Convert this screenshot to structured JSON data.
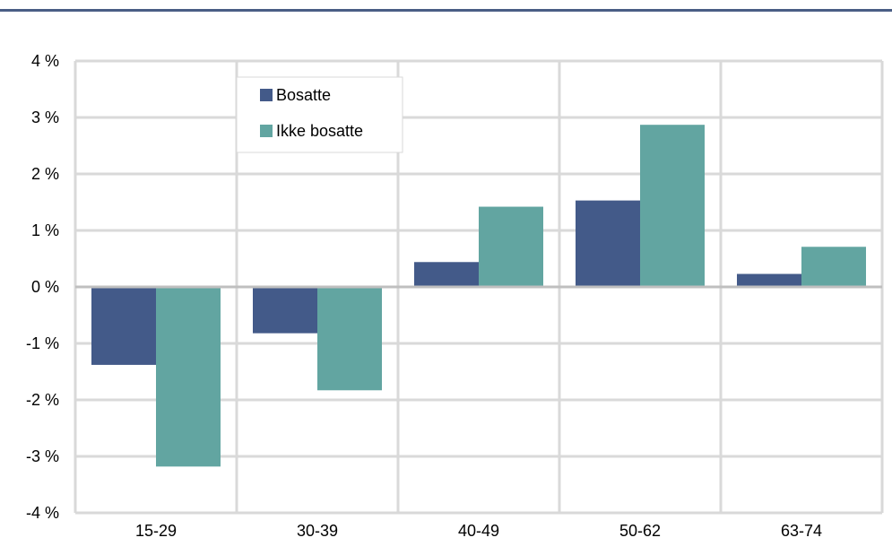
{
  "title": "",
  "colors": {
    "bosatte": "#435a89",
    "ikke_bosatte": "#62a5a1",
    "grid": "#d9d9d9",
    "zero_line": "#bfbfbf",
    "rule": "#4a5e85"
  },
  "chart_data": {
    "type": "bar",
    "categories": [
      "15-29",
      "30-39",
      "40-49",
      "50-62",
      "63-74"
    ],
    "series": [
      {
        "name": "Bosatte",
        "values": [
          -1.38,
          -0.82,
          0.44,
          1.53,
          0.23
        ]
      },
      {
        "name": "Ikke bosatte",
        "values": [
          -3.18,
          -1.83,
          1.42,
          2.87,
          0.71
        ]
      }
    ],
    "ylim": [
      -4,
      4
    ],
    "yticks": [
      4,
      3,
      2,
      1,
      0,
      -1,
      -2,
      -3,
      -4
    ],
    "ytick_labels": [
      "4 %",
      "3 %",
      "2 %",
      "1 %",
      "0 %",
      "-1 %",
      "-2 %",
      "-3 %",
      "-4 %"
    ],
    "grid": true,
    "legend": "top-left",
    "xlabel": "",
    "ylabel": ""
  }
}
